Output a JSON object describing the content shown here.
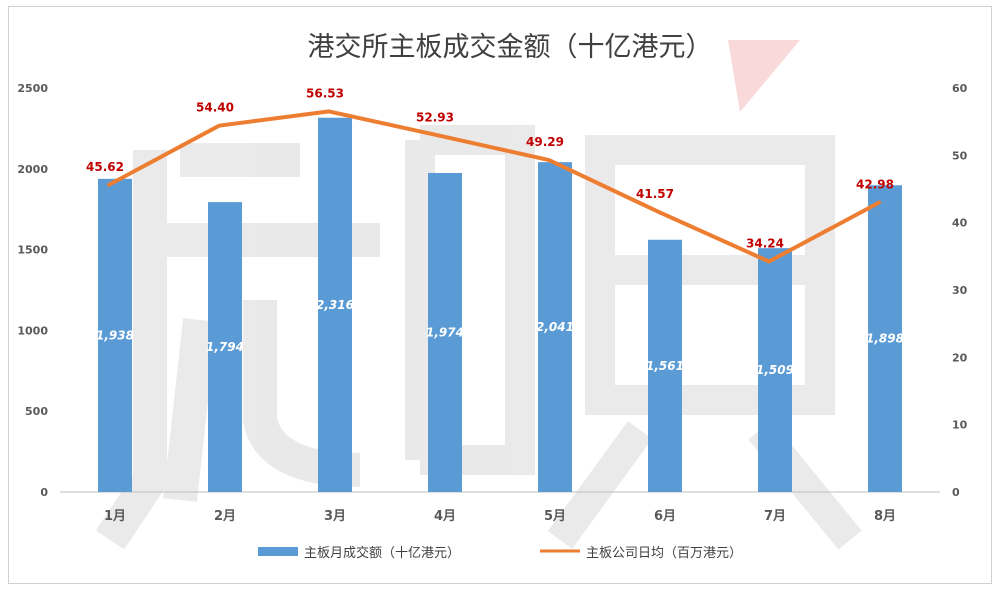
{
  "chart_data": {
    "type": "bar",
    "title": "港交所主板成交金额（十亿港元）",
    "categories": [
      "1月",
      "2月",
      "3月",
      "4月",
      "5月",
      "6月",
      "7月",
      "8月"
    ],
    "series": [
      {
        "name": "主板月成交额（十亿港元）",
        "type": "bar",
        "axis": "left",
        "values": [
          1938,
          1794,
          2316,
          1974,
          2041,
          1561,
          1509,
          1898
        ],
        "labels": [
          "1,938",
          "1,794",
          "2,316",
          "1,974",
          "2,041",
          "1,561",
          "1,509",
          "1,898"
        ],
        "color": "#5b9bd5"
      },
      {
        "name": "主板公司日均（百万港元）",
        "type": "line",
        "axis": "right",
        "values": [
          45.62,
          54.4,
          56.53,
          52.93,
          49.29,
          41.57,
          34.24,
          42.98
        ],
        "labels": [
          "45.62",
          "54.40",
          "56.53",
          "52.93",
          "49.29",
          "41.57",
          "34.24",
          "42.98"
        ],
        "color": "#ed7d31",
        "label_color": "#c00000"
      }
    ],
    "y_left": {
      "min": 0,
      "max": 2500,
      "ticks": [
        "0",
        "500",
        "1000",
        "1500",
        "2000",
        "2500"
      ]
    },
    "y_right": {
      "min": 0,
      "max": 60,
      "ticks": [
        "0",
        "10",
        "20",
        "30",
        "40",
        "50",
        "60"
      ]
    },
    "grid": false,
    "legend_position": "bottom"
  }
}
